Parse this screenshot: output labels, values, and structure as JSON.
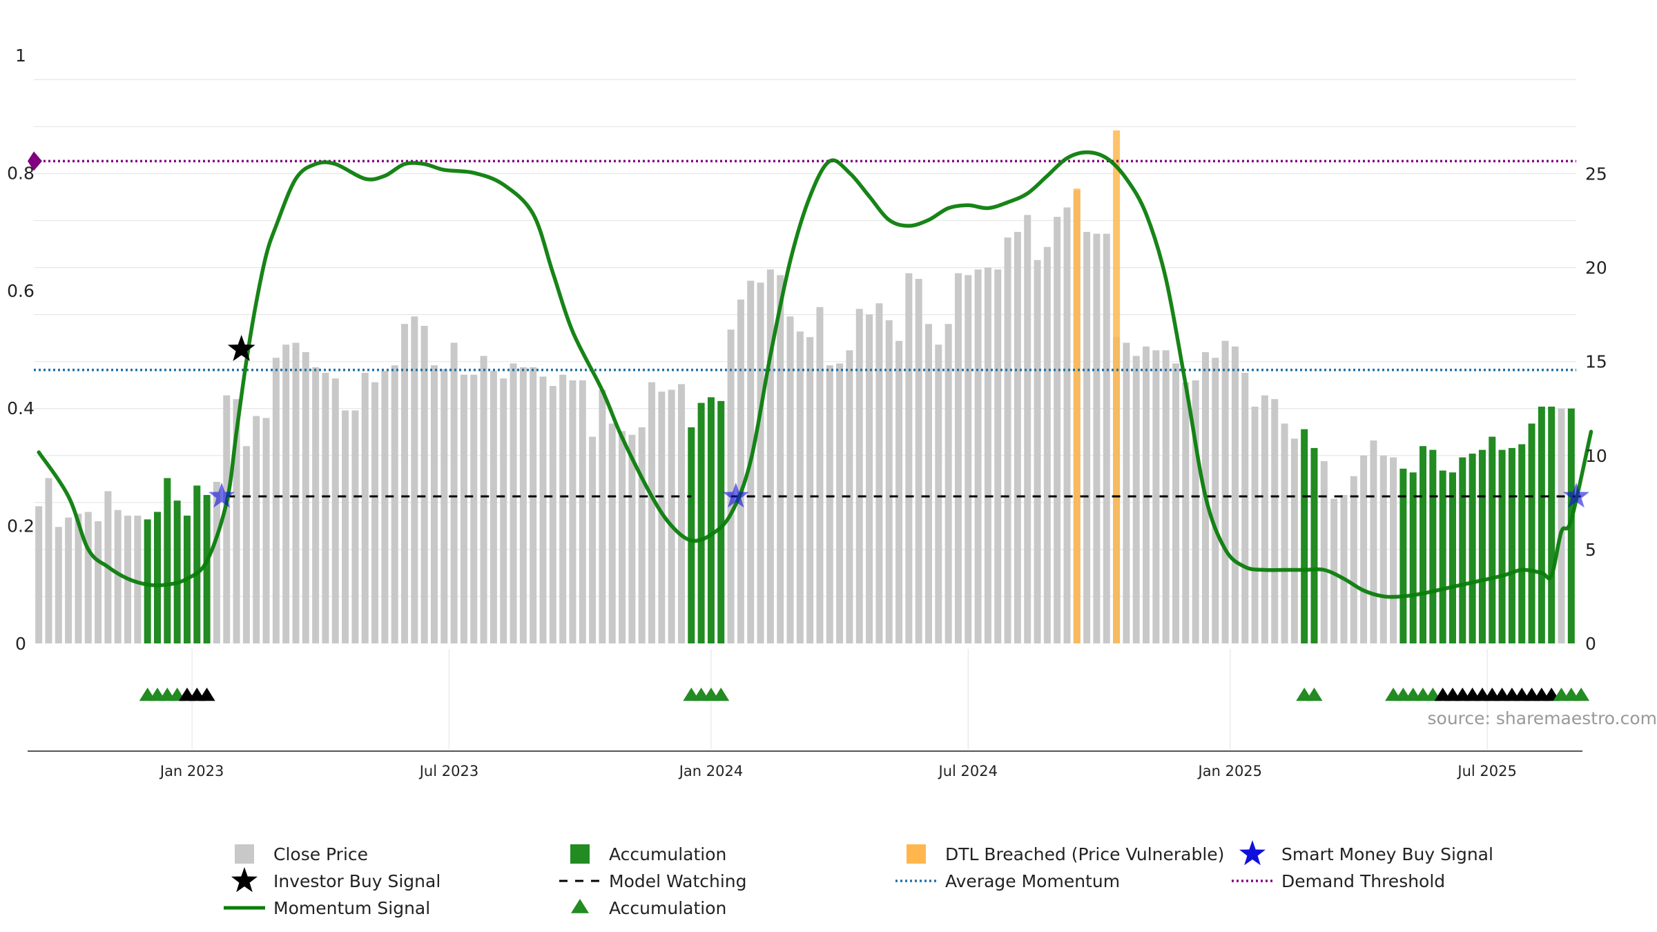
{
  "colors": {
    "close_price": "#c8c8c8",
    "accumulation": "#228b22",
    "dtl_breached": "#ffb74d",
    "smart_money": "#1010dd",
    "investor_buy": "#000000",
    "momentum": "#0b7d0b",
    "model_watching": "#000000",
    "average_momentum": "#1f6fa8",
    "demand_threshold": "#800080",
    "grid": "#e6e6e6",
    "axis": "#555555"
  },
  "source_text": "source: sharemaestro.com",
  "legend": [
    {
      "key": "close_price",
      "label": "Close Price",
      "symbol": "square-gray"
    },
    {
      "key": "accumulation_bar",
      "label": "Accumulation",
      "symbol": "square-green"
    },
    {
      "key": "dtl_breached",
      "label": "DTL Breached (Price Vulnerable)",
      "symbol": "square-orange"
    },
    {
      "key": "smart_money",
      "label": "Smart Money Buy Signal",
      "symbol": "star-blue"
    },
    {
      "key": "investor_buy",
      "label": "Investor Buy Signal",
      "symbol": "star-black"
    },
    {
      "key": "model_watching",
      "label": "Model Watching",
      "symbol": "dash-black"
    },
    {
      "key": "average_momentum",
      "label": "Average Momentum",
      "symbol": "dotted-blue"
    },
    {
      "key": "demand_threshold",
      "label": "Demand Threshold",
      "symbol": "dotted-purple"
    },
    {
      "key": "momentum",
      "label": "Momentum Signal",
      "symbol": "line-green"
    },
    {
      "key": "accumulation_marker",
      "label": "Accumulation",
      "symbol": "triangle-green"
    }
  ],
  "chart_data": {
    "type": "bar",
    "x_axis": {
      "ticks": [
        {
          "label": "Jan 2023",
          "week": 15.5
        },
        {
          "label": "Jul 2023",
          "week": 41.5
        },
        {
          "label": "Jan 2024",
          "week": 68
        },
        {
          "label": "Jul 2024",
          "week": 94
        },
        {
          "label": "Jan 2025",
          "week": 120.5
        },
        {
          "label": "Jul 2025",
          "week": 146.5
        }
      ],
      "week_range": [
        0,
        157
      ]
    },
    "left_axis": {
      "range": [
        0,
        1
      ],
      "ticks": [
        "0",
        "0.2",
        "0.4",
        "0.6",
        "0.8",
        "1"
      ]
    },
    "right_axis": {
      "range": [
        0,
        31.3
      ],
      "ticks": [
        "0",
        "5",
        "10",
        "15",
        "20",
        "25"
      ]
    },
    "grid": true,
    "legend_placement": "bottom",
    "close_prices": [
      7.3,
      8.8,
      6.2,
      6.7,
      6.9,
      7.0,
      6.5,
      8.1,
      7.1,
      6.8,
      6.8,
      6.6,
      7.0,
      8.8,
      7.6,
      6.8,
      8.4,
      7.9,
      8.6,
      13.2,
      13.0,
      10.5,
      12.1,
      12.0,
      15.2,
      15.9,
      16.0,
      15.5,
      14.7,
      14.4,
      14.1,
      12.4,
      12.4,
      14.4,
      13.9,
      14.5,
      14.8,
      17.0,
      17.4,
      16.9,
      14.8,
      14.6,
      16.0,
      14.3,
      14.3,
      15.3,
      14.5,
      14.1,
      14.9,
      14.7,
      14.7,
      14.2,
      13.7,
      14.3,
      14.0,
      14.0,
      11.0,
      13.5,
      11.7,
      11.3,
      11.1,
      11.5,
      13.9,
      13.4,
      13.5,
      13.8,
      11.5,
      12.8,
      13.1,
      12.9,
      16.7,
      18.3,
      19.3,
      19.2,
      19.9,
      19.6,
      17.4,
      16.6,
      16.3,
      17.9,
      14.8,
      14.9,
      15.6,
      17.8,
      17.5,
      18.1,
      17.2,
      16.1,
      19.7,
      19.4,
      17.0,
      15.9,
      17.0,
      19.7,
      19.6,
      19.9,
      20.0,
      19.9,
      21.6,
      21.9,
      22.8,
      20.4,
      21.1,
      22.7,
      23.2,
      24.1,
      21.9,
      21.8,
      21.8,
      16.3,
      16.0,
      15.3,
      15.8,
      15.6,
      15.6,
      14.9,
      13.9,
      14.0,
      15.5,
      15.2,
      16.1,
      15.8,
      14.4,
      12.6,
      13.2,
      13.0,
      11.7,
      10.9,
      11.4,
      10.4,
      9.7,
      7.7,
      7.9,
      8.9,
      10.0,
      10.8,
      10.0,
      9.9,
      9.3,
      9.1,
      10.5,
      10.3,
      9.2,
      9.1,
      9.9,
      10.1,
      10.3,
      11.0,
      10.3,
      10.4,
      10.6,
      11.7,
      12.6,
      12.6,
      12.5,
      12.5
    ],
    "accumulation_weeks": [
      11,
      12,
      13,
      14,
      15,
      16,
      17,
      66,
      67,
      68,
      69,
      128,
      129,
      138,
      139,
      140,
      141,
      142,
      143,
      144,
      145,
      146,
      147,
      148,
      149,
      150,
      151,
      152,
      153,
      155
    ],
    "dtl_breached": [
      {
        "week": 105,
        "value": 24.2
      },
      {
        "week": 109,
        "value": 27.3
      }
    ],
    "momentum_signal": [
      [
        0,
        0.325
      ],
      [
        3,
        0.25
      ],
      [
        5,
        0.16
      ],
      [
        7,
        0.13
      ],
      [
        9,
        0.11
      ],
      [
        11,
        0.1
      ],
      [
        13,
        0.1
      ],
      [
        15,
        0.11
      ],
      [
        17,
        0.14
      ],
      [
        19,
        0.24
      ],
      [
        20,
        0.36
      ],
      [
        21,
        0.48
      ],
      [
        22,
        0.58
      ],
      [
        23,
        0.66
      ],
      [
        24,
        0.71
      ],
      [
        26,
        0.79
      ],
      [
        28,
        0.815
      ],
      [
        30,
        0.815
      ],
      [
        33,
        0.79
      ],
      [
        35,
        0.795
      ],
      [
        37,
        0.815
      ],
      [
        39,
        0.815
      ],
      [
        41,
        0.805
      ],
      [
        44,
        0.8
      ],
      [
        47,
        0.78
      ],
      [
        50,
        0.73
      ],
      [
        52,
        0.63
      ],
      [
        54,
        0.53
      ],
      [
        57,
        0.43
      ],
      [
        59,
        0.35
      ],
      [
        62,
        0.25
      ],
      [
        64,
        0.2
      ],
      [
        66,
        0.175
      ],
      [
        68,
        0.185
      ],
      [
        70,
        0.22
      ],
      [
        72,
        0.31
      ],
      [
        74,
        0.49
      ],
      [
        76,
        0.65
      ],
      [
        78,
        0.76
      ],
      [
        80,
        0.82
      ],
      [
        82,
        0.8
      ],
      [
        84,
        0.76
      ],
      [
        86,
        0.72
      ],
      [
        88,
        0.71
      ],
      [
        90,
        0.72
      ],
      [
        92,
        0.74
      ],
      [
        94,
        0.745
      ],
      [
        96,
        0.74
      ],
      [
        98,
        0.75
      ],
      [
        100,
        0.765
      ],
      [
        102,
        0.795
      ],
      [
        104,
        0.825
      ],
      [
        106,
        0.835
      ],
      [
        108,
        0.825
      ],
      [
        110,
        0.79
      ],
      [
        112,
        0.73
      ],
      [
        114,
        0.62
      ],
      [
        116,
        0.44
      ],
      [
        118,
        0.25
      ],
      [
        120,
        0.16
      ],
      [
        122,
        0.13
      ],
      [
        124,
        0.125
      ],
      [
        126,
        0.125
      ],
      [
        128,
        0.125
      ],
      [
        130,
        0.125
      ],
      [
        132,
        0.11
      ],
      [
        134,
        0.09
      ],
      [
        136,
        0.08
      ],
      [
        138,
        0.08
      ],
      [
        140,
        0.085
      ],
      [
        144,
        0.1
      ],
      [
        148,
        0.115
      ],
      [
        150,
        0.125
      ],
      [
        152,
        0.12
      ],
      [
        153,
        0.115
      ],
      [
        154,
        0.19
      ],
      [
        155,
        0.21
      ],
      [
        157,
        0.36
      ]
    ],
    "average_momentum": 0.465,
    "demand_threshold": 0.82,
    "model_watching_level": 0.25,
    "model_watching_segments": [
      [
        19,
        66
      ],
      [
        70,
        156
      ]
    ],
    "investor_buy_signals": [
      {
        "week": 20.5,
        "value": 0.5
      }
    ],
    "smart_money_signals": [
      {
        "week": 18.5,
        "value": 0.25
      },
      {
        "week": 70.5,
        "value": 0.25
      },
      {
        "week": 155.5,
        "value": 0.25
      }
    ],
    "accumulation_markers": [
      {
        "week": 11,
        "type": "accumulation"
      },
      {
        "week": 12,
        "type": "accumulation"
      },
      {
        "week": 13,
        "type": "accumulation"
      },
      {
        "week": 14,
        "type": "accumulation"
      },
      {
        "week": 15,
        "type": "watch"
      },
      {
        "week": 16,
        "type": "watch"
      },
      {
        "week": 17,
        "type": "watch"
      },
      {
        "week": 66,
        "type": "accumulation"
      },
      {
        "week": 67,
        "type": "accumulation"
      },
      {
        "week": 68,
        "type": "accumulation"
      },
      {
        "week": 69,
        "type": "accumulation"
      },
      {
        "week": 128,
        "type": "accumulation"
      },
      {
        "week": 129,
        "type": "accumulation"
      },
      {
        "week": 137,
        "type": "accumulation"
      },
      {
        "week": 138,
        "type": "accumulation"
      },
      {
        "week": 139,
        "type": "accumulation"
      },
      {
        "week": 140,
        "type": "accumulation"
      },
      {
        "week": 141,
        "type": "accumulation"
      },
      {
        "week": 142,
        "type": "watch"
      },
      {
        "week": 143,
        "type": "watch"
      },
      {
        "week": 144,
        "type": "watch"
      },
      {
        "week": 145,
        "type": "watch"
      },
      {
        "week": 146,
        "type": "watch"
      },
      {
        "week": 147,
        "type": "watch"
      },
      {
        "week": 148,
        "type": "watch"
      },
      {
        "week": 149,
        "type": "watch"
      },
      {
        "week": 150,
        "type": "watch"
      },
      {
        "week": 151,
        "type": "watch"
      },
      {
        "week": 152,
        "type": "watch"
      },
      {
        "week": 153,
        "type": "watch"
      },
      {
        "week": 154,
        "type": "accumulation"
      },
      {
        "week": 155,
        "type": "accumulation"
      },
      {
        "week": 156,
        "type": "accumulation"
      }
    ]
  }
}
